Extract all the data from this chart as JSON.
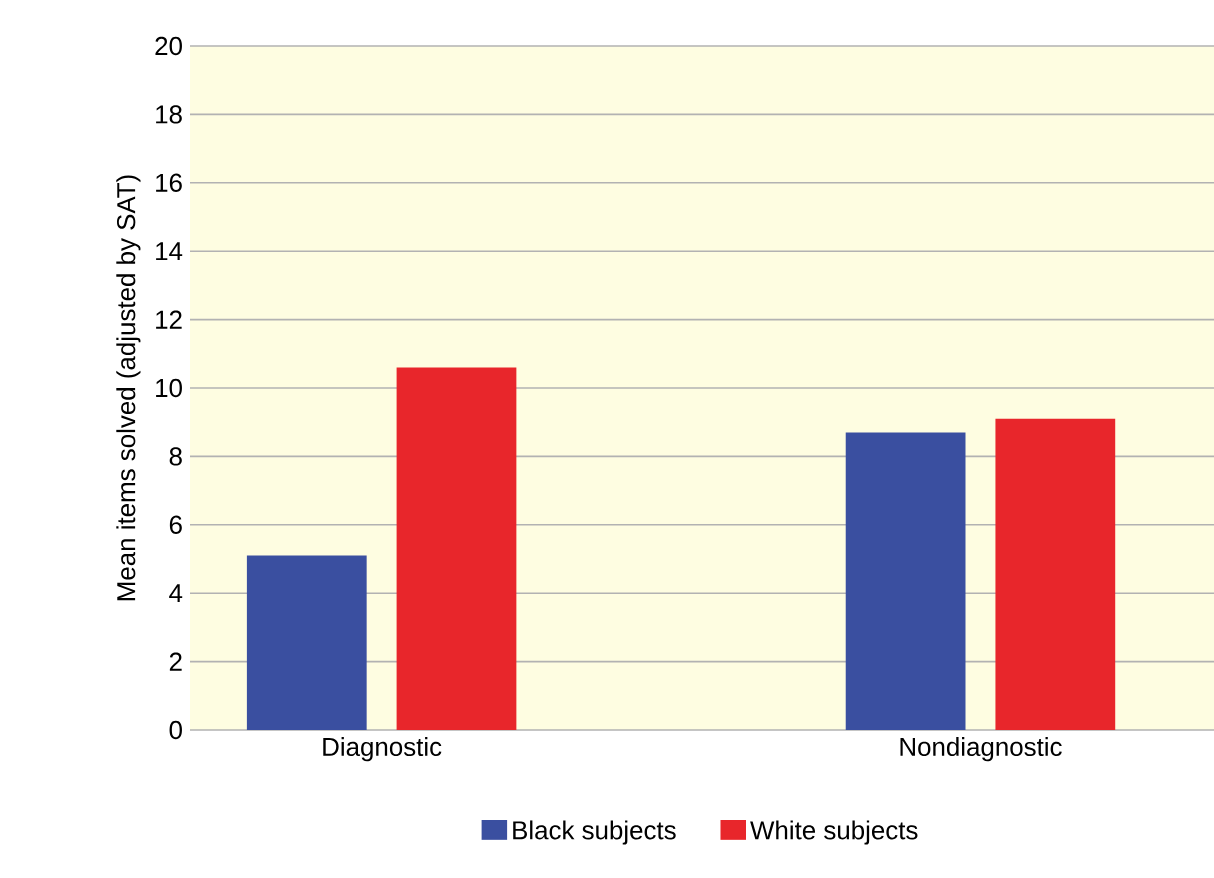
{
  "chart_data": {
    "type": "bar",
    "ylabel": "Mean items solved (adjusted by SAT)",
    "categories": [
      "Diagnostic",
      "Nondiagnostic"
    ],
    "series": [
      {
        "name": "Black subjects",
        "color": "#3a4fa0",
        "values": [
          5.1,
          8.7
        ]
      },
      {
        "name": "White subjects",
        "color": "#e8262b",
        "values": [
          10.6,
          9.1
        ]
      }
    ],
    "ylim": [
      0,
      20
    ],
    "yticks": [
      0,
      2,
      4,
      6,
      8,
      10,
      12,
      14,
      16,
      18,
      20
    ],
    "grid": "y",
    "legend": "bottom"
  }
}
